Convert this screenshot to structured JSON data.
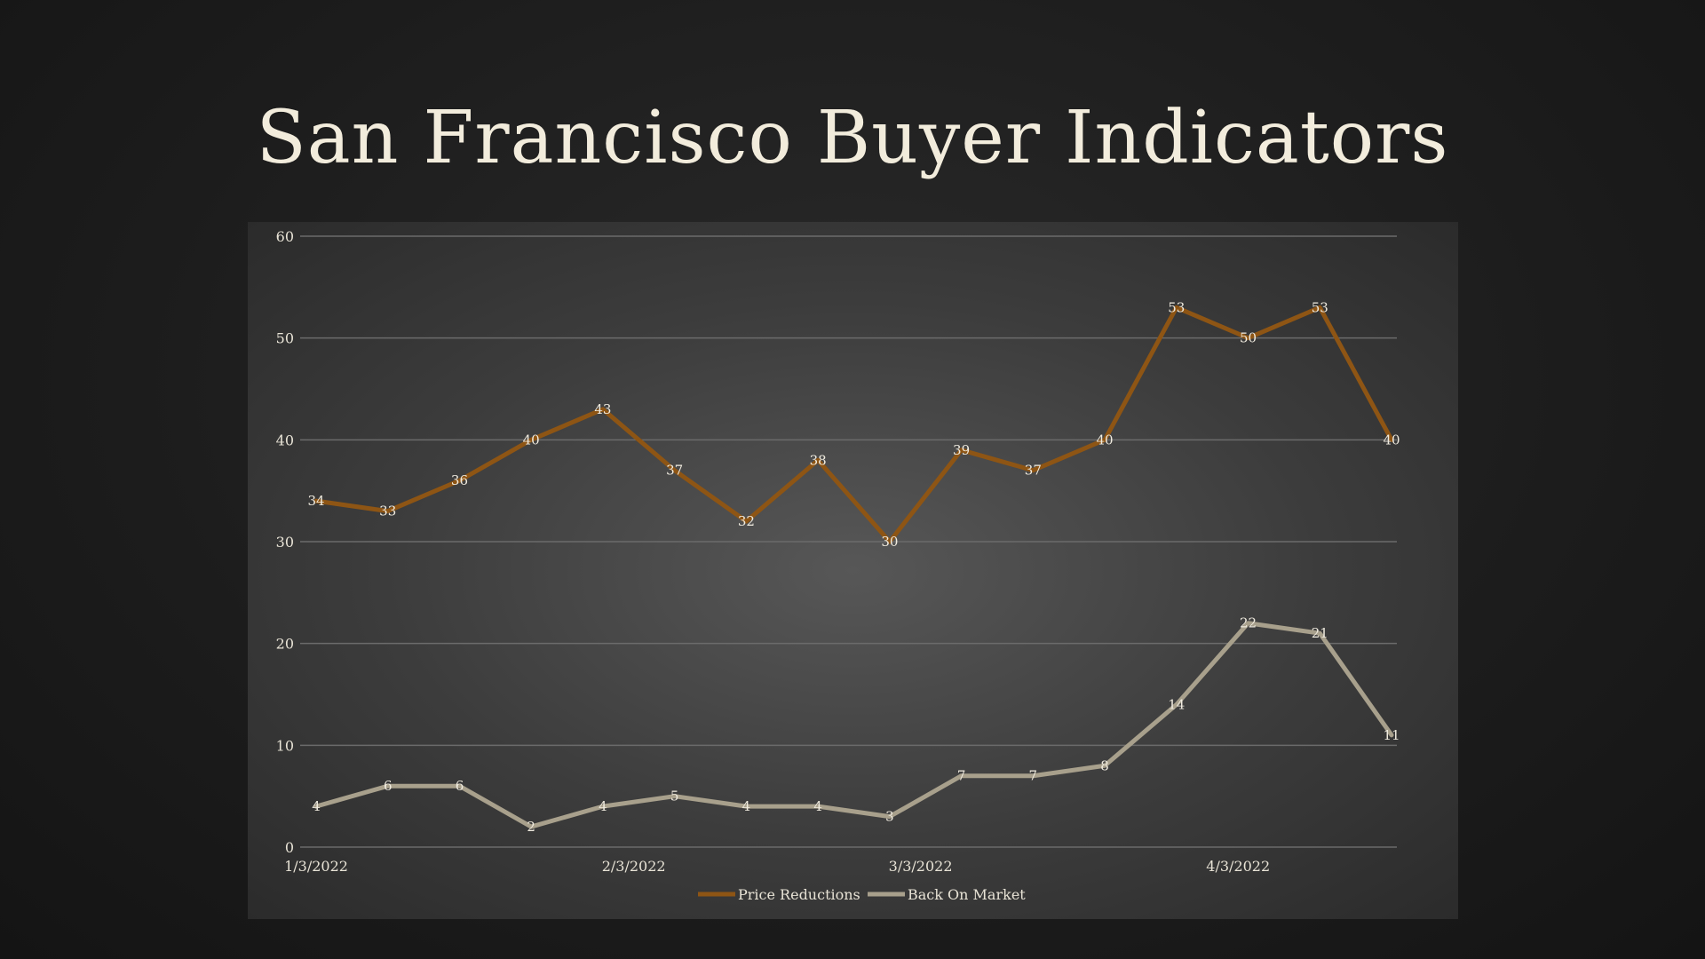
{
  "slide": {
    "title": "San Francisco Buyer Indicators"
  },
  "chart_data": {
    "type": "line",
    "title": "",
    "xlabel": "",
    "ylabel": "",
    "ylim": [
      0,
      60
    ],
    "yticks": [
      0,
      10,
      20,
      30,
      40,
      50,
      60
    ],
    "grid": true,
    "legend": "bottom",
    "x_tick_labels": [
      {
        "index": 0,
        "label": "1/3/2022"
      },
      {
        "index": 4.43,
        "label": "2/3/2022"
      },
      {
        "index": 8.43,
        "label": "3/3/2022"
      },
      {
        "index": 12.86,
        "label": "4/3/2022"
      }
    ],
    "series": [
      {
        "name": "Price Reductions",
        "color": "#8e5514",
        "values": [
          34,
          33,
          36,
          40,
          43,
          37,
          32,
          38,
          30,
          39,
          37,
          40,
          53,
          50,
          53,
          40
        ]
      },
      {
        "name": "Back On Market",
        "color": "#a8a08c",
        "values": [
          4,
          6,
          6,
          2,
          4,
          5,
          4,
          4,
          3,
          7,
          7,
          8,
          14,
          22,
          21,
          11
        ]
      }
    ]
  }
}
